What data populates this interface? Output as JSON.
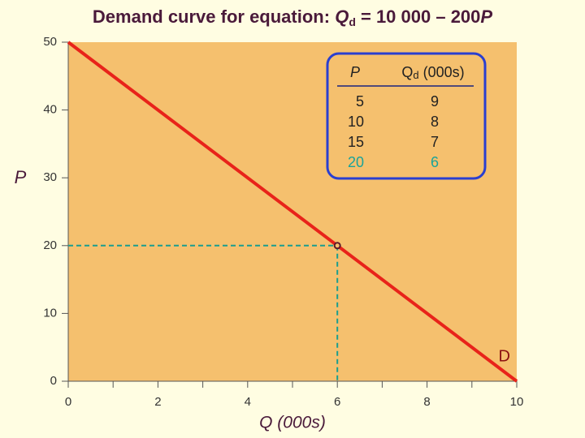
{
  "chart_data": {
    "type": "line",
    "title": [
      "Demand curve for equation: ",
      "Q",
      "d",
      " = 10 000 – 200",
      "P"
    ],
    "xlabel": "Q (000s)",
    "ylabel": "P",
    "xlim": [
      0,
      10
    ],
    "ylim": [
      0,
      50
    ],
    "xticks": [
      0,
      2,
      4,
      6,
      8,
      10
    ],
    "xminorticks": [
      1,
      3,
      5,
      7,
      9
    ],
    "yticks": [
      0,
      10,
      20,
      30,
      40,
      50
    ],
    "plot_color": "#f5c06e",
    "series": [
      {
        "name": "D",
        "color": "#e8231a",
        "x": [
          0,
          10
        ],
        "values": [
          50,
          0
        ]
      }
    ],
    "point": {
      "x": 6,
      "y": 20,
      "color": "#1a9e8f"
    },
    "table": {
      "columns": [
        {
          "label": "P"
        },
        {
          "label": "Q",
          "sub": "d",
          "suffix": " (000s)"
        }
      ],
      "rows": [
        [
          5,
          9
        ],
        [
          10,
          8
        ],
        [
          15,
          7
        ],
        [
          20,
          6
        ]
      ],
      "highlight_row": 3,
      "highlight_color": "#1aa39a",
      "border_color": "#2a3fd0"
    }
  }
}
